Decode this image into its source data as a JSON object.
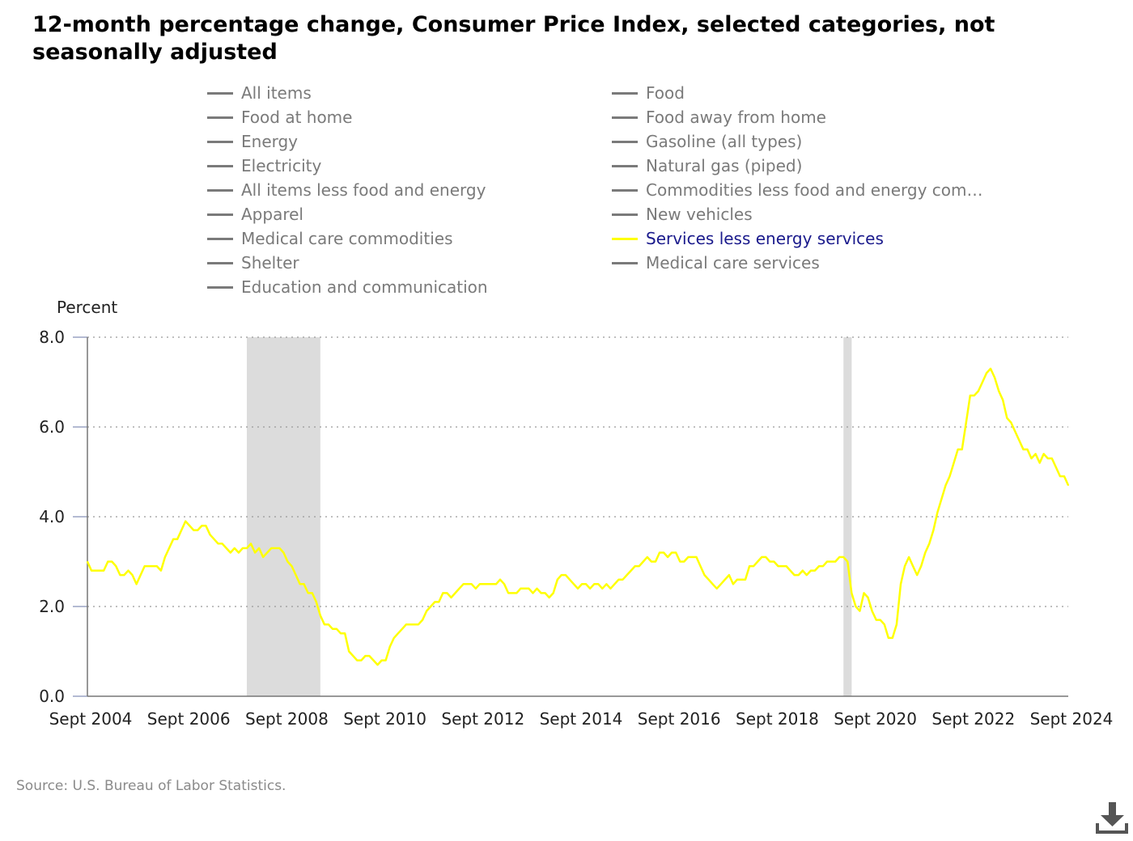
{
  "title": "12-month percentage change, Consumer Price Index, selected categories, not seasonally adjusted",
  "legend": [
    {
      "label": "All items",
      "active": false
    },
    {
      "label": "Food",
      "active": false
    },
    {
      "label": "Food at home",
      "active": false
    },
    {
      "label": "Food away from home",
      "active": false
    },
    {
      "label": "Energy",
      "active": false
    },
    {
      "label": "Gasoline (all types)",
      "active": false
    },
    {
      "label": "Electricity",
      "active": false
    },
    {
      "label": "Natural gas (piped)",
      "active": false
    },
    {
      "label": "All items less food and energy",
      "active": false
    },
    {
      "label": "Commodities less food and energy com…",
      "active": false
    },
    {
      "label": "Apparel",
      "active": false
    },
    {
      "label": "New vehicles",
      "active": false
    },
    {
      "label": "Medical care commodities",
      "active": false
    },
    {
      "label": "Services less energy services",
      "active": true
    },
    {
      "label": "Shelter",
      "active": false
    },
    {
      "label": "Medical care services",
      "active": false
    },
    {
      "label": "Education and communication",
      "active": false
    }
  ],
  "colors": {
    "active_series": "#ffff00",
    "inactive_legend": "#7a7a7a",
    "active_legend_text": "#1a1a8c",
    "recession": "#dcdcdc",
    "grid": "#999999"
  },
  "source": "Source: U.S. Bureau of Labor Statistics.",
  "download_icon": "download-icon",
  "chart_data": {
    "type": "line",
    "ylabel": "Percent",
    "ylim": [
      0,
      8
    ],
    "yticks": [
      "0.0",
      "2.0",
      "4.0",
      "6.0",
      "8.0"
    ],
    "xlim": [
      "2004-09",
      "2024-09"
    ],
    "xticks": [
      "Sept 2004",
      "Sept 2006",
      "Sept 2008",
      "Sept 2010",
      "Sept 2012",
      "Sept 2014",
      "Sept 2016",
      "Sept 2018",
      "Sept 2020",
      "Sept 2022",
      "Sept 2024"
    ],
    "grid": "horizontal dotted",
    "recessions": [
      [
        "2007-12",
        "2009-06"
      ],
      [
        "2020-02",
        "2020-04"
      ]
    ],
    "series": [
      {
        "name": "Services less energy services",
        "points": [
          [
            "2004-09",
            3.0
          ],
          [
            "2004-10",
            2.8
          ],
          [
            "2004-11",
            2.8
          ],
          [
            "2004-12",
            2.8
          ],
          [
            "2005-01",
            2.8
          ],
          [
            "2005-02",
            3.0
          ],
          [
            "2005-03",
            3.0
          ],
          [
            "2005-04",
            2.9
          ],
          [
            "2005-05",
            2.7
          ],
          [
            "2005-06",
            2.7
          ],
          [
            "2005-07",
            2.8
          ],
          [
            "2005-08",
            2.7
          ],
          [
            "2005-09",
            2.5
          ],
          [
            "2005-10",
            2.7
          ],
          [
            "2005-11",
            2.9
          ],
          [
            "2005-12",
            2.9
          ],
          [
            "2006-01",
            2.9
          ],
          [
            "2006-02",
            2.9
          ],
          [
            "2006-03",
            2.8
          ],
          [
            "2006-04",
            3.1
          ],
          [
            "2006-05",
            3.3
          ],
          [
            "2006-06",
            3.5
          ],
          [
            "2006-07",
            3.5
          ],
          [
            "2006-08",
            3.7
          ],
          [
            "2006-09",
            3.9
          ],
          [
            "2006-10",
            3.8
          ],
          [
            "2006-11",
            3.7
          ],
          [
            "2006-12",
            3.7
          ],
          [
            "2007-01",
            3.8
          ],
          [
            "2007-02",
            3.8
          ],
          [
            "2007-03",
            3.6
          ],
          [
            "2007-04",
            3.5
          ],
          [
            "2007-05",
            3.4
          ],
          [
            "2007-06",
            3.4
          ],
          [
            "2007-07",
            3.3
          ],
          [
            "2007-08",
            3.2
          ],
          [
            "2007-09",
            3.3
          ],
          [
            "2007-10",
            3.2
          ],
          [
            "2007-11",
            3.3
          ],
          [
            "2007-12",
            3.3
          ],
          [
            "2008-01",
            3.4
          ],
          [
            "2008-02",
            3.2
          ],
          [
            "2008-03",
            3.3
          ],
          [
            "2008-04",
            3.1
          ],
          [
            "2008-05",
            3.2
          ],
          [
            "2008-06",
            3.3
          ],
          [
            "2008-07",
            3.3
          ],
          [
            "2008-08",
            3.3
          ],
          [
            "2008-09",
            3.2
          ],
          [
            "2008-10",
            3.0
          ],
          [
            "2008-11",
            2.9
          ],
          [
            "2008-12",
            2.7
          ],
          [
            "2009-01",
            2.5
          ],
          [
            "2009-02",
            2.5
          ],
          [
            "2009-03",
            2.3
          ],
          [
            "2009-04",
            2.3
          ],
          [
            "2009-05",
            2.1
          ],
          [
            "2009-06",
            1.8
          ],
          [
            "2009-07",
            1.6
          ],
          [
            "2009-08",
            1.6
          ],
          [
            "2009-09",
            1.5
          ],
          [
            "2009-10",
            1.5
          ],
          [
            "2009-11",
            1.4
          ],
          [
            "2009-12",
            1.4
          ],
          [
            "2010-01",
            1.0
          ],
          [
            "2010-02",
            0.9
          ],
          [
            "2010-03",
            0.8
          ],
          [
            "2010-04",
            0.8
          ],
          [
            "2010-05",
            0.9
          ],
          [
            "2010-06",
            0.9
          ],
          [
            "2010-07",
            0.8
          ],
          [
            "2010-08",
            0.7
          ],
          [
            "2010-09",
            0.8
          ],
          [
            "2010-10",
            0.8
          ],
          [
            "2010-11",
            1.1
          ],
          [
            "2010-12",
            1.3
          ],
          [
            "2011-01",
            1.4
          ],
          [
            "2011-02",
            1.5
          ],
          [
            "2011-03",
            1.6
          ],
          [
            "2011-04",
            1.6
          ],
          [
            "2011-05",
            1.6
          ],
          [
            "2011-06",
            1.6
          ],
          [
            "2011-07",
            1.7
          ],
          [
            "2011-08",
            1.9
          ],
          [
            "2011-09",
            2.0
          ],
          [
            "2011-10",
            2.1
          ],
          [
            "2011-11",
            2.1
          ],
          [
            "2011-12",
            2.3
          ],
          [
            "2012-01",
            2.3
          ],
          [
            "2012-02",
            2.2
          ],
          [
            "2012-03",
            2.3
          ],
          [
            "2012-04",
            2.4
          ],
          [
            "2012-05",
            2.5
          ],
          [
            "2012-06",
            2.5
          ],
          [
            "2012-07",
            2.5
          ],
          [
            "2012-08",
            2.4
          ],
          [
            "2012-09",
            2.5
          ],
          [
            "2012-10",
            2.5
          ],
          [
            "2012-11",
            2.5
          ],
          [
            "2012-12",
            2.5
          ],
          [
            "2013-01",
            2.5
          ],
          [
            "2013-02",
            2.6
          ],
          [
            "2013-03",
            2.5
          ],
          [
            "2013-04",
            2.3
          ],
          [
            "2013-05",
            2.3
          ],
          [
            "2013-06",
            2.3
          ],
          [
            "2013-07",
            2.4
          ],
          [
            "2013-08",
            2.4
          ],
          [
            "2013-09",
            2.4
          ],
          [
            "2013-10",
            2.3
          ],
          [
            "2013-11",
            2.4
          ],
          [
            "2013-12",
            2.3
          ],
          [
            "2014-01",
            2.3
          ],
          [
            "2014-02",
            2.2
          ],
          [
            "2014-03",
            2.3
          ],
          [
            "2014-04",
            2.6
          ],
          [
            "2014-05",
            2.7
          ],
          [
            "2014-06",
            2.7
          ],
          [
            "2014-07",
            2.6
          ],
          [
            "2014-08",
            2.5
          ],
          [
            "2014-09",
            2.4
          ],
          [
            "2014-10",
            2.5
          ],
          [
            "2014-11",
            2.5
          ],
          [
            "2014-12",
            2.4
          ],
          [
            "2015-01",
            2.5
          ],
          [
            "2015-02",
            2.5
          ],
          [
            "2015-03",
            2.4
          ],
          [
            "2015-04",
            2.5
          ],
          [
            "2015-05",
            2.4
          ],
          [
            "2015-06",
            2.5
          ],
          [
            "2015-07",
            2.6
          ],
          [
            "2015-08",
            2.6
          ],
          [
            "2015-09",
            2.7
          ],
          [
            "2015-10",
            2.8
          ],
          [
            "2015-11",
            2.9
          ],
          [
            "2015-12",
            2.9
          ],
          [
            "2016-01",
            3.0
          ],
          [
            "2016-02",
            3.1
          ],
          [
            "2016-03",
            3.0
          ],
          [
            "2016-04",
            3.0
          ],
          [
            "2016-05",
            3.2
          ],
          [
            "2016-06",
            3.2
          ],
          [
            "2016-07",
            3.1
          ],
          [
            "2016-08",
            3.2
          ],
          [
            "2016-09",
            3.2
          ],
          [
            "2016-10",
            3.0
          ],
          [
            "2016-11",
            3.0
          ],
          [
            "2016-12",
            3.1
          ],
          [
            "2017-01",
            3.1
          ],
          [
            "2017-02",
            3.1
          ],
          [
            "2017-03",
            2.9
          ],
          [
            "2017-04",
            2.7
          ],
          [
            "2017-05",
            2.6
          ],
          [
            "2017-06",
            2.5
          ],
          [
            "2017-07",
            2.4
          ],
          [
            "2017-08",
            2.5
          ],
          [
            "2017-09",
            2.6
          ],
          [
            "2017-10",
            2.7
          ],
          [
            "2017-11",
            2.5
          ],
          [
            "2017-12",
            2.6
          ],
          [
            "2018-01",
            2.6
          ],
          [
            "2018-02",
            2.6
          ],
          [
            "2018-03",
            2.9
          ],
          [
            "2018-04",
            2.9
          ],
          [
            "2018-05",
            3.0
          ],
          [
            "2018-06",
            3.1
          ],
          [
            "2018-07",
            3.1
          ],
          [
            "2018-08",
            3.0
          ],
          [
            "2018-09",
            3.0
          ],
          [
            "2018-10",
            2.9
          ],
          [
            "2018-11",
            2.9
          ],
          [
            "2018-12",
            2.9
          ],
          [
            "2019-01",
            2.8
          ],
          [
            "2019-02",
            2.7
          ],
          [
            "2019-03",
            2.7
          ],
          [
            "2019-04",
            2.8
          ],
          [
            "2019-05",
            2.7
          ],
          [
            "2019-06",
            2.8
          ],
          [
            "2019-07",
            2.8
          ],
          [
            "2019-08",
            2.9
          ],
          [
            "2019-09",
            2.9
          ],
          [
            "2019-10",
            3.0
          ],
          [
            "2019-11",
            3.0
          ],
          [
            "2019-12",
            3.0
          ],
          [
            "2020-01",
            3.1
          ],
          [
            "2020-02",
            3.1
          ],
          [
            "2020-03",
            3.0
          ],
          [
            "2020-04",
            2.3
          ],
          [
            "2020-05",
            2.0
          ],
          [
            "2020-06",
            1.9
          ],
          [
            "2020-07",
            2.3
          ],
          [
            "2020-08",
            2.2
          ],
          [
            "2020-09",
            1.9
          ],
          [
            "2020-10",
            1.7
          ],
          [
            "2020-11",
            1.7
          ],
          [
            "2020-12",
            1.6
          ],
          [
            "2021-01",
            1.3
          ],
          [
            "2021-02",
            1.3
          ],
          [
            "2021-03",
            1.6
          ],
          [
            "2021-04",
            2.5
          ],
          [
            "2021-05",
            2.9
          ],
          [
            "2021-06",
            3.1
          ],
          [
            "2021-07",
            2.9
          ],
          [
            "2021-08",
            2.7
          ],
          [
            "2021-09",
            2.9
          ],
          [
            "2021-10",
            3.2
          ],
          [
            "2021-11",
            3.4
          ],
          [
            "2021-12",
            3.7
          ],
          [
            "2022-01",
            4.1
          ],
          [
            "2022-02",
            4.4
          ],
          [
            "2022-03",
            4.7
          ],
          [
            "2022-04",
            4.9
          ],
          [
            "2022-05",
            5.2
          ],
          [
            "2022-06",
            5.5
          ],
          [
            "2022-07",
            5.5
          ],
          [
            "2022-08",
            6.1
          ],
          [
            "2022-09",
            6.7
          ],
          [
            "2022-10",
            6.7
          ],
          [
            "2022-11",
            6.8
          ],
          [
            "2022-12",
            7.0
          ],
          [
            "2023-01",
            7.2
          ],
          [
            "2023-02",
            7.3
          ],
          [
            "2023-03",
            7.1
          ],
          [
            "2023-04",
            6.8
          ],
          [
            "2023-05",
            6.6
          ],
          [
            "2023-06",
            6.2
          ],
          [
            "2023-07",
            6.1
          ],
          [
            "2023-08",
            5.9
          ],
          [
            "2023-09",
            5.7
          ],
          [
            "2023-10",
            5.5
          ],
          [
            "2023-11",
            5.5
          ],
          [
            "2023-12",
            5.3
          ],
          [
            "2024-01",
            5.4
          ],
          [
            "2024-02",
            5.2
          ],
          [
            "2024-03",
            5.4
          ],
          [
            "2024-04",
            5.3
          ],
          [
            "2024-05",
            5.3
          ],
          [
            "2024-06",
            5.1
          ],
          [
            "2024-07",
            4.9
          ],
          [
            "2024-08",
            4.9
          ],
          [
            "2024-09",
            4.7
          ]
        ]
      }
    ]
  }
}
